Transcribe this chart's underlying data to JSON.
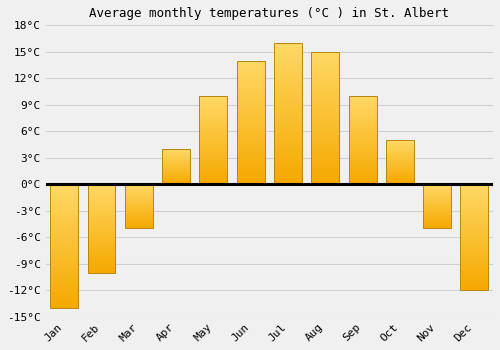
{
  "title": "Average monthly temperatures (°C ) in St. Albert",
  "months": [
    "Jan",
    "Feb",
    "Mar",
    "Apr",
    "May",
    "Jun",
    "Jul",
    "Aug",
    "Sep",
    "Oct",
    "Nov",
    "Dec"
  ],
  "values": [
    -14,
    -10,
    -5,
    4,
    10,
    14,
    16,
    15,
    10,
    5,
    -5,
    -12
  ],
  "bar_color_bottom": "#F5A800",
  "bar_color_top": "#FFD966",
  "bar_edge_color": "#B8860B",
  "ylim": [
    -15,
    18
  ],
  "yticks": [
    -15,
    -12,
    -9,
    -6,
    -3,
    0,
    3,
    6,
    9,
    12,
    15,
    18
  ],
  "background_color": "#f0f0f0",
  "grid_color": "#d0d0d0",
  "zero_line_color": "#000000",
  "title_fontsize": 9,
  "tick_fontsize": 8
}
